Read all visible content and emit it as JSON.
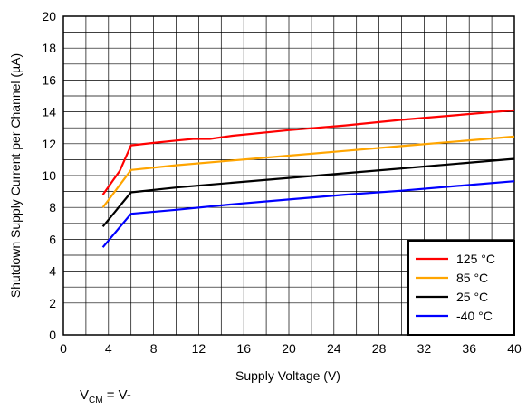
{
  "chart_data": {
    "type": "line",
    "xlabel": "Supply Voltage (V)",
    "ylabel": "Shutdown Supply Current per Channel (µA)",
    "xlim": [
      0,
      40
    ],
    "ylim": [
      0,
      20
    ],
    "xticks": [
      0,
      4,
      8,
      12,
      16,
      20,
      24,
      28,
      32,
      36,
      40
    ],
    "yticks": [
      0,
      2,
      4,
      6,
      8,
      10,
      12,
      14,
      16,
      18,
      20
    ],
    "x_minor_step": 2,
    "y_minor_step": 1,
    "grid": true,
    "legend_position": "bottom-right",
    "series": [
      {
        "name": "125 °C",
        "color": "#ff0000",
        "x": [
          3.5,
          5,
          6,
          8,
          10,
          11.5,
          13,
          15,
          20,
          25,
          30,
          35,
          40
        ],
        "y": [
          8.8,
          10.3,
          11.9,
          12.05,
          12.2,
          12.3,
          12.3,
          12.5,
          12.85,
          13.15,
          13.5,
          13.8,
          14.1
        ]
      },
      {
        "name": "85 °C",
        "color": "#ffa500",
        "x": [
          3.5,
          6,
          10,
          15,
          20,
          25,
          30,
          35,
          40
        ],
        "y": [
          8.0,
          10.35,
          10.65,
          10.95,
          11.25,
          11.55,
          11.85,
          12.15,
          12.45
        ]
      },
      {
        "name": "25 °C",
        "color": "#000000",
        "x": [
          3.5,
          6,
          10,
          15,
          20,
          25,
          30,
          35,
          40
        ],
        "y": [
          6.8,
          8.95,
          9.25,
          9.55,
          9.85,
          10.15,
          10.45,
          10.75,
          11.05
        ]
      },
      {
        "name": "-40 °C",
        "color": "#0000ff",
        "x": [
          3.5,
          6,
          10,
          15,
          20,
          25,
          30,
          35,
          40
        ],
        "y": [
          5.5,
          7.6,
          7.85,
          8.2,
          8.5,
          8.8,
          9.05,
          9.35,
          9.65
        ]
      }
    ]
  },
  "caption": {
    "main": "V",
    "sub": "CM",
    "rest": " = V-"
  }
}
